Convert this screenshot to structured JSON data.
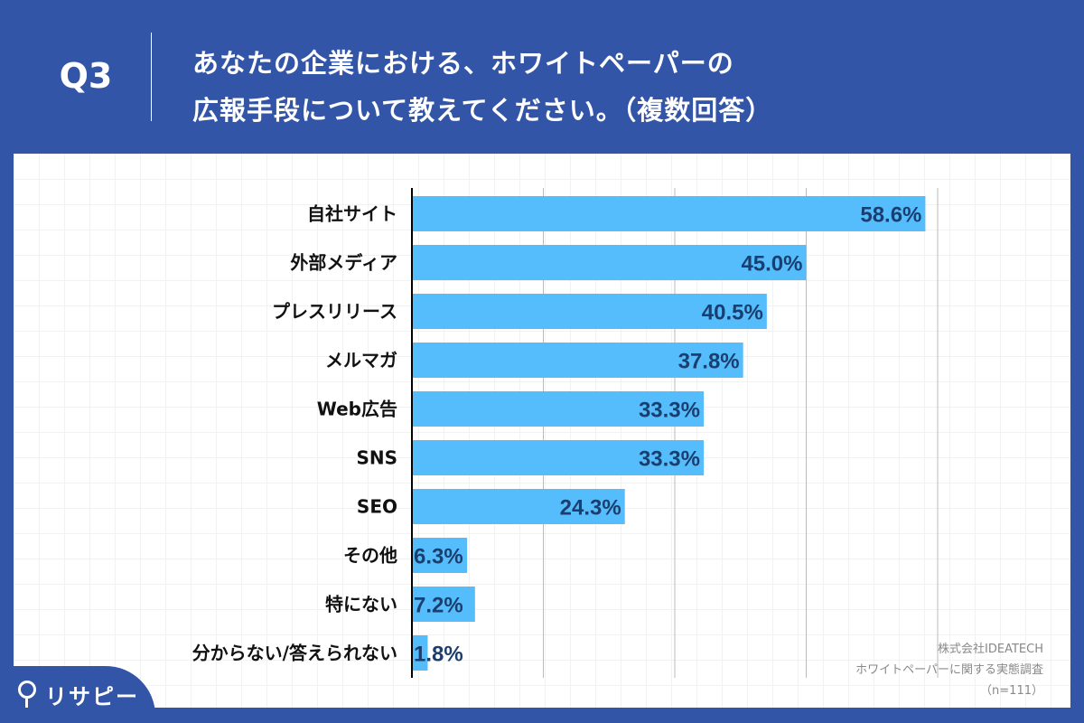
{
  "header": {
    "question_no": "Q3",
    "title_line1": "あなたの企業における、ホワイトペーパーの",
    "title_line2": "広報手段について教えてください。（複数回答）"
  },
  "chart_data": {
    "type": "bar",
    "orientation": "horizontal",
    "categories": [
      "自社サイト",
      "外部メディア",
      "プレスリリース",
      "メルマガ",
      "Web広告",
      "SNS",
      "SEO",
      "その他",
      "特にない",
      "分からない/答えられない"
    ],
    "values": [
      58.6,
      45.0,
      40.5,
      37.8,
      33.3,
      33.3,
      24.3,
      6.3,
      7.2,
      1.8
    ],
    "value_labels": [
      "58.6%",
      "45.0%",
      "40.5%",
      "37.8%",
      "33.3%",
      "33.3%",
      "24.3%",
      "6.3%",
      "7.2%",
      "1.8%"
    ],
    "xlim": [
      0,
      60
    ],
    "x_gridlines": [
      0,
      15,
      30,
      45,
      60
    ],
    "grid": true,
    "colors": {
      "bar": "#55bdfb",
      "label": "#1b3e6e",
      "background": "#3355a8"
    }
  },
  "source": {
    "line1": "株式会社IDEATECH",
    "line2": "ホワイトペーパーに関する実態調査",
    "line3": "（n=111）"
  },
  "logo": {
    "text": "リサピー"
  }
}
